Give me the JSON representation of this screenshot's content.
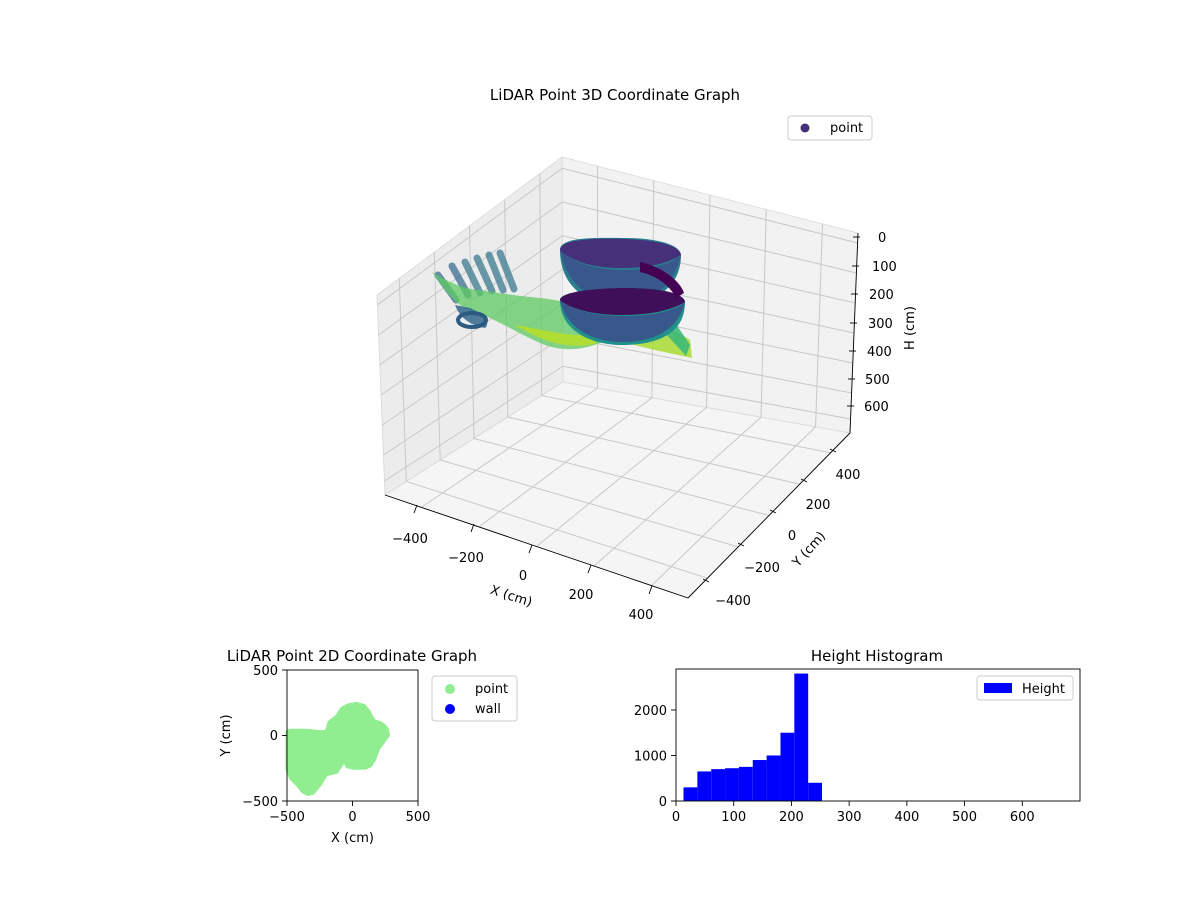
{
  "colors": {
    "point_2d": "#90ee90",
    "wall_2d": "#0000ff",
    "histogram": "#0000ff",
    "legend_3d_marker": "#46307a",
    "viridis": [
      "#440154",
      "#3b528b",
      "#21918c",
      "#5ec962",
      "#fde725"
    ]
  },
  "chart_data": [
    {
      "type": "scatter",
      "projection": "3d",
      "title": "LiDAR Point 3D Coordinate Graph",
      "xlabel": "X (cm)",
      "ylabel": "Y (cm)",
      "zlabel": "H (cm)",
      "xticks": [
        "−400",
        "−200",
        "0",
        "200",
        "400"
      ],
      "yticks": [
        "−400",
        "−200",
        "0",
        "200",
        "400"
      ],
      "zticks": [
        "0",
        "100",
        "200",
        "300",
        "400",
        "500",
        "600"
      ],
      "xlim": [
        -500,
        500
      ],
      "ylim": [
        -500,
        500
      ],
      "zlim": [
        0,
        680
      ],
      "z_inverted": true,
      "colormap": "viridis",
      "legend": {
        "entries": [
          "point"
        ],
        "placement": "upper-right"
      },
      "grid": true
    },
    {
      "type": "scatter",
      "title": "LiDAR Point 2D Coordinate Graph",
      "xlabel": "X (cm)",
      "ylabel": "Y (cm)",
      "xlim": [
        -500,
        500
      ],
      "ylim": [
        -500,
        500
      ],
      "xticks": [
        "−500",
        "0",
        "500"
      ],
      "yticks": [
        "500",
        "0",
        "−500"
      ],
      "legend": {
        "entries": [
          "point",
          "wall"
        ],
        "placement": "outside-right"
      },
      "grid": false,
      "point_outline_polygon": [
        [
          -500,
          30
        ],
        [
          -480,
          40
        ],
        [
          -350,
          40
        ],
        [
          -250,
          30
        ],
        [
          -200,
          30
        ],
        [
          -180,
          100
        ],
        [
          -120,
          150
        ],
        [
          -80,
          210
        ],
        [
          -30,
          235
        ],
        [
          30,
          245
        ],
        [
          90,
          230
        ],
        [
          130,
          180
        ],
        [
          150,
          140
        ],
        [
          170,
          110
        ],
        [
          210,
          100
        ],
        [
          240,
          80
        ],
        [
          265,
          50
        ],
        [
          275,
          0
        ],
        [
          250,
          -30
        ],
        [
          230,
          -60
        ],
        [
          200,
          -100
        ],
        [
          170,
          -180
        ],
        [
          140,
          -230
        ],
        [
          100,
          -250
        ],
        [
          60,
          -250
        ],
        [
          10,
          -250
        ],
        [
          -40,
          -240
        ],
        [
          -60,
          -200
        ],
        [
          -80,
          -220
        ],
        [
          -120,
          -280
        ],
        [
          -200,
          -300
        ],
        [
          -250,
          -380
        ],
        [
          -300,
          -440
        ],
        [
          -340,
          -450
        ],
        [
          -380,
          -430
        ],
        [
          -420,
          -380
        ],
        [
          -470,
          -330
        ],
        [
          -500,
          -260
        ],
        [
          -500,
          0
        ]
      ]
    },
    {
      "type": "bar",
      "subtype": "histogram",
      "title": "Height Histogram",
      "xlabel": "",
      "ylabel": "",
      "xlim": [
        0,
        700
      ],
      "ylim": [
        0,
        2900
      ],
      "xticks": [
        "0",
        "100",
        "200",
        "300",
        "400",
        "500",
        "600"
      ],
      "yticks": [
        "0",
        "1000",
        "2000"
      ],
      "bin_edges": [
        13,
        37,
        61,
        85,
        109,
        133,
        157,
        181,
        205,
        229,
        253
      ],
      "values": [
        300,
        650,
        700,
        720,
        750,
        900,
        1000,
        1500,
        2800,
        400
      ],
      "series": [
        {
          "name": "Height"
        }
      ],
      "legend": {
        "entries": [
          "Height"
        ],
        "placement": "upper-right"
      }
    }
  ]
}
